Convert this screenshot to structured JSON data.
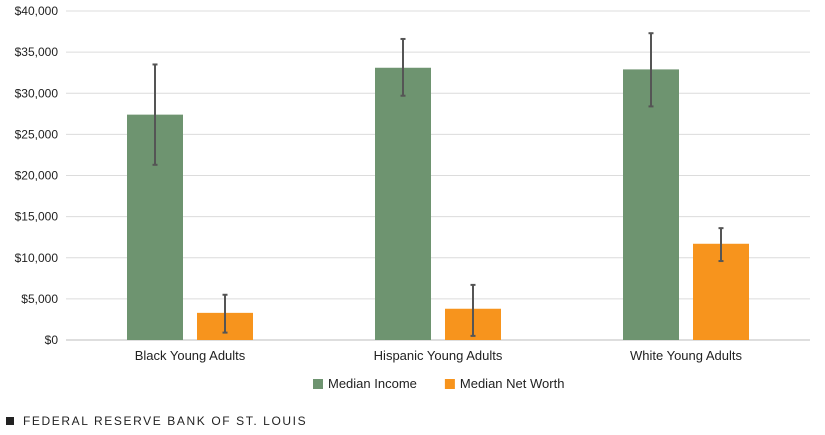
{
  "chart_data": {
    "type": "bar",
    "categories": [
      "Black Young Adults",
      "Hispanic Young Adults",
      "White Young Adults"
    ],
    "series": [
      {
        "name": "Median Income",
        "color": "#6e9470",
        "values": [
          27400,
          33100,
          32900
        ],
        "error_low": [
          21300,
          29700,
          28400
        ],
        "error_high": [
          33500,
          36600,
          37300
        ]
      },
      {
        "name": "Median Net Worth",
        "color": "#f7941d",
        "values": [
          3300,
          3800,
          11700
        ],
        "error_low": [
          900,
          500,
          9600
        ],
        "error_high": [
          5500,
          6700,
          13600
        ]
      }
    ],
    "ylim": [
      0,
      40000
    ],
    "yticks": [
      0,
      5000,
      10000,
      15000,
      20000,
      25000,
      30000,
      35000,
      40000
    ],
    "ytick_labels": [
      "$0",
      "$5,000",
      "$10,000",
      "$15,000",
      "$20,000",
      "$25,000",
      "$30,000",
      "$35,000",
      "$40,000"
    ],
    "grid": true,
    "legend_position": "bottom-center",
    "error_bar_color": "#555555"
  },
  "footer": {
    "source": "FEDERAL RESERVE BANK OF ST. LOUIS"
  }
}
